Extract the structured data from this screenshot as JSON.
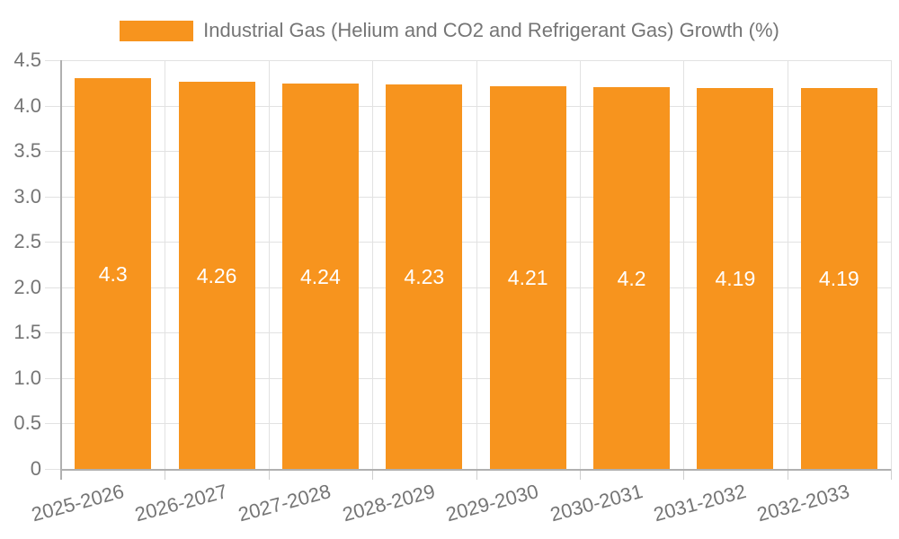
{
  "chart_data": {
    "type": "bar",
    "title": "",
    "legend_label": "Industrial Gas (Helium and CO2 and Refrigerant Gas) Growth (%)",
    "legend_position": "top-center",
    "categories": [
      "2025-2026",
      "2026-2027",
      "2027-2028",
      "2028-2029",
      "2029-2030",
      "2030-2031",
      "2031-2032",
      "2032-2033"
    ],
    "values": [
      4.3,
      4.26,
      4.24,
      4.23,
      4.21,
      4.2,
      4.19,
      4.19
    ],
    "value_labels": [
      "4.3",
      "4.26",
      "4.24",
      "4.23",
      "4.21",
      "4.2",
      "4.19",
      "4.19"
    ],
    "xlabel": "",
    "ylabel": "",
    "ylim": [
      0,
      4.5
    ],
    "y_ticks": [
      0,
      0.5,
      1.0,
      1.5,
      2.0,
      2.5,
      3.0,
      3.5,
      4.0,
      4.5
    ],
    "y_tick_labels": [
      "0",
      "0.5",
      "1.0",
      "1.5",
      "2.0",
      "2.5",
      "3.0",
      "3.5",
      "4.0",
      "4.5"
    ],
    "grid": true,
    "value_label_position": "middle-of-bar"
  },
  "colors": {
    "bar": "#F7941E",
    "grid": "#E2E2E2",
    "tick": "#CFCFCF",
    "axis": "#B0B0B0",
    "text": "#757575",
    "value_text": "#FFFFFF",
    "background": "#FFFFFF"
  }
}
